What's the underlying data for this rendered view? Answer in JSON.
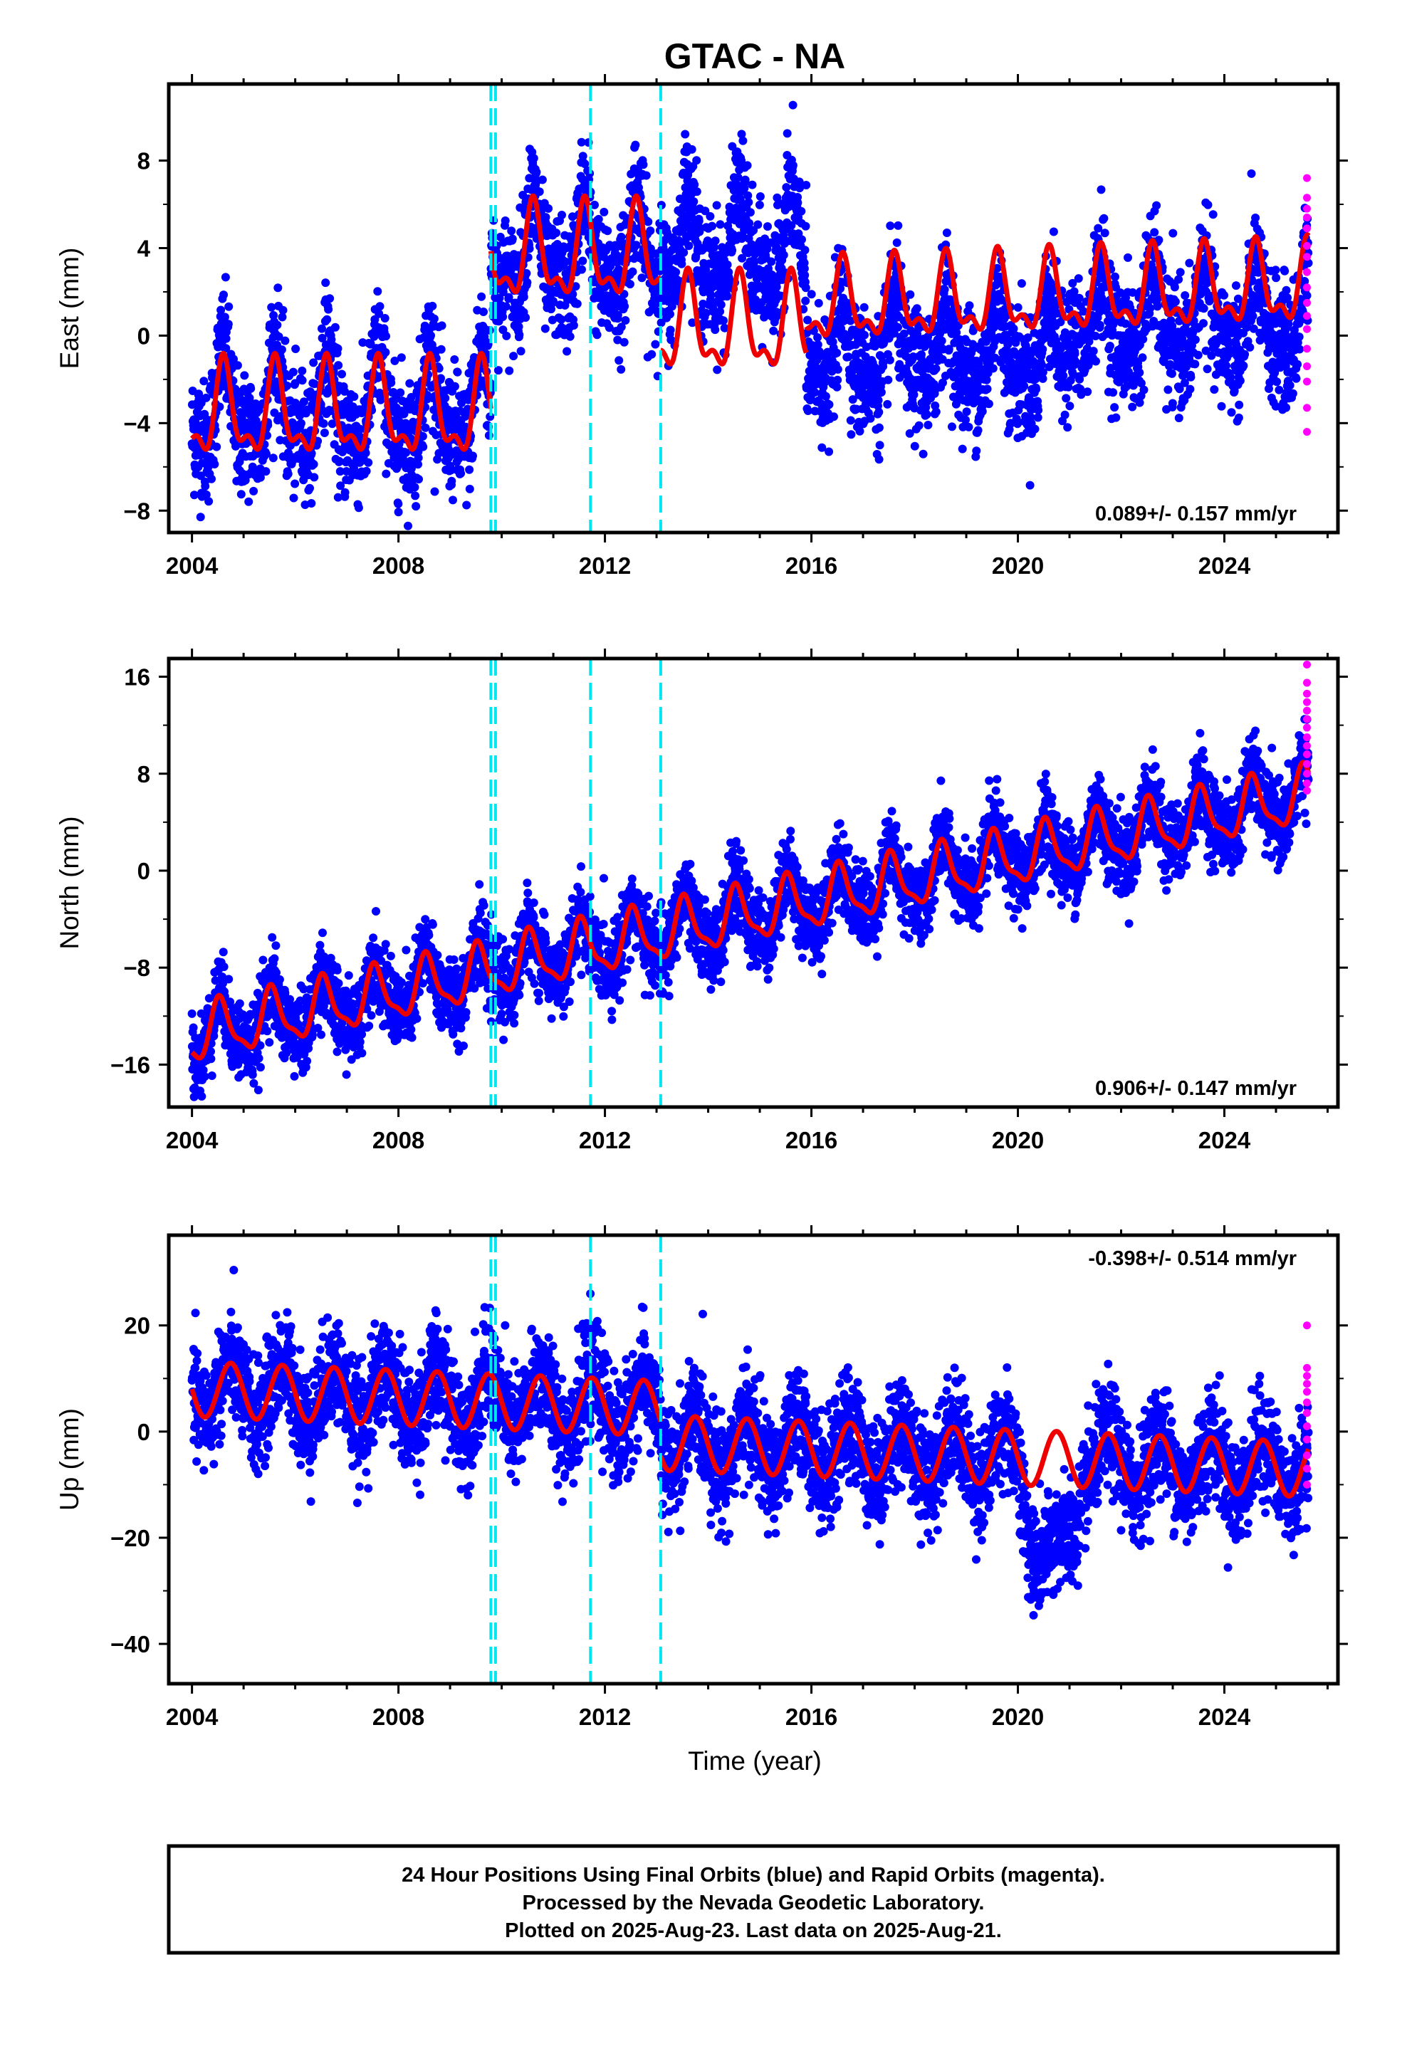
{
  "chart_data": {
    "type": "scatter",
    "title": "GTAC - NA",
    "xlabel": "Time (year)",
    "x_tick_labels": [
      "2004",
      "2008",
      "2012",
      "2016",
      "2020",
      "2024"
    ],
    "x_ticks": [
      2004,
      2008,
      2012,
      2016,
      2020,
      2024
    ],
    "xlim": [
      2003.55,
      2026.2
    ],
    "discontinuities": [
      2009.79,
      2009.88,
      2011.72,
      2013.08
    ],
    "colors": {
      "final_orbits": "#0000ff",
      "rapid_orbits": "#ff00ff",
      "model_fit": "#ee0000",
      "discontinuity": "#00e5ee"
    },
    "panels": [
      {
        "id": "east",
        "ylabel": "East (mm)",
        "ylim": [
          -9,
          11.5
        ],
        "y_ticks": [
          -8,
          -4,
          0,
          4,
          8
        ],
        "y_tick_labels": [
          "−8",
          "−4",
          "0",
          "4",
          "8"
        ],
        "rate_label": "0.089+/- 0.157 mm/yr",
        "rate_position": "bottom-right",
        "fit_segments": [
          {
            "start": 2004.0,
            "end": 2009.79,
            "offset": -3.6,
            "trend": 0.0,
            "annual_amp": 1.9,
            "phase_peak": 0.62,
            "semi_amp": 0.9,
            "semi_peak": 0.6
          },
          {
            "start": 2009.79,
            "end": 2013.08,
            "offset": 3.6,
            "trend": 0.0,
            "annual_amp": 1.9,
            "phase_peak": 0.62,
            "semi_amp": 0.9,
            "semi_peak": 0.6
          },
          {
            "start": 2013.08,
            "end": 2015.9,
            "offset": 0.3,
            "trend": 0.0,
            "annual_amp": 1.9,
            "phase_peak": 0.62,
            "semi_amp": 0.9,
            "semi_peak": 0.6
          },
          {
            "start": 2015.9,
            "end": 2025.63,
            "offset": 0.3,
            "trend": 0.089,
            "annual_amp": 1.6,
            "phase_peak": 0.62,
            "semi_amp": 0.8,
            "semi_peak": 0.6
          }
        ],
        "scatter_noise": 1.4,
        "scatter_regimes": [
          {
            "start": 2004.0,
            "end": 2009.79,
            "level": -3.4
          },
          {
            "start": 2009.79,
            "end": 2013.08,
            "level": 3.6
          },
          {
            "start": 2013.08,
            "end": 2015.9,
            "level": 3.8
          },
          {
            "start": 2015.9,
            "end": 2020.9,
            "level": -0.8
          },
          {
            "start": 2020.9,
            "end": 2025.63,
            "level": 0.6
          }
        ],
        "rapid_values": [
          7.2,
          6.3,
          5.8,
          5.4,
          4.9,
          4.1,
          3.6,
          2.9,
          2.2,
          1.5,
          0.9,
          0.3,
          -0.6,
          -1.4,
          -2.1,
          -3.3,
          -4.4
        ]
      },
      {
        "id": "north",
        "ylabel": "North (mm)",
        "ylim": [
          -19.5,
          17.5
        ],
        "y_ticks": [
          -16,
          -8,
          0,
          8,
          16
        ],
        "y_tick_labels": [
          "−16",
          "−8",
          "0",
          "8",
          "16"
        ],
        "rate_label": "0.906+/- 0.147 mm/yr",
        "rate_position": "bottom-right",
        "fit_segments": [
          {
            "start": 2004.0,
            "end": 2009.79,
            "offset": -13.6,
            "trend": 0.906,
            "annual_amp": 2.2,
            "phase_peak": 0.55,
            "semi_amp": 0.7,
            "semi_peak": 0.5
          },
          {
            "start": 2009.79,
            "end": 2025.63,
            "offset": -13.4,
            "trend": 0.906,
            "annual_amp": 2.2,
            "phase_peak": 0.55,
            "semi_amp": 0.7,
            "semi_peak": 0.5
          }
        ],
        "scatter_noise": 1.6,
        "scatter_regimes": [],
        "rapid_values": [
          17.0,
          15.5,
          14.6,
          13.9,
          13.2,
          12.5,
          11.8,
          11.0,
          10.3,
          9.6,
          8.8,
          8.0,
          7.2,
          6.6
        ]
      },
      {
        "id": "up",
        "ylabel": "Up (mm)",
        "ylim": [
          -47.5,
          37
        ],
        "y_ticks": [
          -40,
          -20,
          0,
          20
        ],
        "y_tick_labels": [
          "−40",
          "−20",
          "0",
          "20"
        ],
        "rate_label": "-0.398+/- 0.514 mm/yr",
        "rate_position": "top-right",
        "fit_segments": [
          {
            "start": 2004.0,
            "end": 2013.08,
            "offset": 8.0,
            "trend": -0.398,
            "annual_amp": 5.2,
            "phase_peak": 0.75,
            "semi_amp": 0.0,
            "semi_peak": 0.0
          },
          {
            "start": 2013.08,
            "end": 2025.63,
            "offset": 1.5,
            "trend": -0.398,
            "annual_amp": 5.2,
            "phase_peak": 0.75,
            "semi_amp": 0.0,
            "semi_peak": 0.0
          }
        ],
        "scatter_noise": 5.0,
        "scatter_regimes": [],
        "up_anomaly": {
          "start": 2020.0,
          "end": 2021.3,
          "depth": -20
        },
        "rapid_values": [
          20.0,
          12.0,
          10.5,
          9.0,
          7.5,
          5.5,
          3.5,
          1.0,
          -1.5,
          -4.5,
          -7.0,
          -10.0
        ]
      }
    ]
  },
  "caption": {
    "line1": "24 Hour Positions Using Final Orbits (blue) and Rapid Orbits (magenta).",
    "line2": "Processed by the Nevada Geodetic Laboratory.",
    "line3": "Plotted on 2025-Aug-23. Last data on 2025-Aug-21."
  }
}
